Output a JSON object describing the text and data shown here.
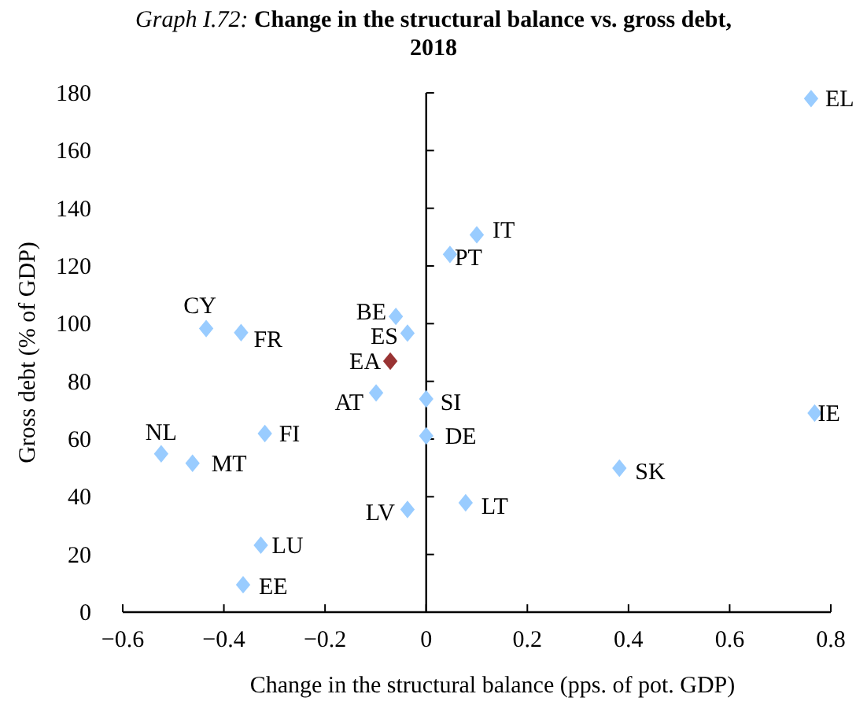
{
  "chart_data": {
    "type": "scatter",
    "title": "Graph I.72: Change in the structural balance vs. gross debt, 2018",
    "xlabel": "Change in the structural balance (pps. of pot. GDP)",
    "ylabel": "Gross debt (% of GDP)",
    "x": [
      0.761,
      0.1,
      0.047,
      -0.06,
      -0.037,
      -0.435,
      -0.366,
      -0.071,
      -0.099,
      0,
      0,
      0.768,
      0.382,
      0.078,
      -0.037,
      -0.327,
      -0.362,
      -0.524,
      -0.462,
      -0.319
    ],
    "values": [
      178,
      130.8,
      124,
      102.5,
      96.7,
      98.3,
      96.9,
      87,
      76,
      73.9,
      61.1,
      69,
      49.9,
      37.9,
      35.6,
      23.2,
      9.5,
      54.9,
      51.6,
      61.9
    ],
    "colors": [
      "#99ccff",
      "#99ccff",
      "#99ccff",
      "#99ccff",
      "#99ccff",
      "#99ccff",
      "#99ccff",
      "#993333",
      "#99ccff",
      "#99ccff",
      "#99ccff",
      "#99ccff",
      "#99ccff",
      "#99ccff",
      "#99ccff",
      "#99ccff",
      "#99ccff",
      "#99ccff",
      "#99ccff",
      "#99ccff"
    ],
    "annotations": [
      {
        "text": "EL",
        "x": 0.761,
        "y": 178
      },
      {
        "text": "IT",
        "x": 0.1,
        "y": 130.8
      },
      {
        "text": "PT",
        "x": 0.047,
        "y": 124
      },
      {
        "text": "BE",
        "x": -0.06,
        "y": 102.5
      },
      {
        "text": "ES",
        "x": -0.037,
        "y": 96.7
      },
      {
        "text": "CY",
        "x": -0.435,
        "y": 98.3
      },
      {
        "text": "FR",
        "x": -0.366,
        "y": 96.9
      },
      {
        "text": "EA",
        "x": -0.071,
        "y": 87
      },
      {
        "text": "AT",
        "x": -0.099,
        "y": 76
      },
      {
        "text": "SI",
        "x": 0,
        "y": 73.9
      },
      {
        "text": "DE",
        "x": 0,
        "y": 61.1
      },
      {
        "text": "IE",
        "x": 0.768,
        "y": 69
      },
      {
        "text": "SK",
        "x": 0.382,
        "y": 49.9
      },
      {
        "text": "LT",
        "x": 0.078,
        "y": 37.9
      },
      {
        "text": "LV",
        "x": -0.037,
        "y": 35.6
      },
      {
        "text": "LU",
        "x": -0.327,
        "y": 23.2
      },
      {
        "text": "EE",
        "x": -0.362,
        "y": 9.5
      },
      {
        "text": "NL",
        "x": -0.524,
        "y": 54.9
      },
      {
        "text": "MT",
        "x": -0.462,
        "y": 51.6
      },
      {
        "text": "FI",
        "x": -0.319,
        "y": 61.9
      }
    ],
    "xlim": [
      -0.6,
      0.8
    ],
    "xticks": [
      -0.6,
      -0.4,
      -0.2,
      0,
      0.2,
      0.4,
      0.6,
      0.8
    ],
    "ylim": [
      0,
      180
    ],
    "yticks": [
      0,
      20,
      40,
      60,
      80,
      100,
      120,
      140,
      160,
      180
    ],
    "marker": "diamond"
  }
}
